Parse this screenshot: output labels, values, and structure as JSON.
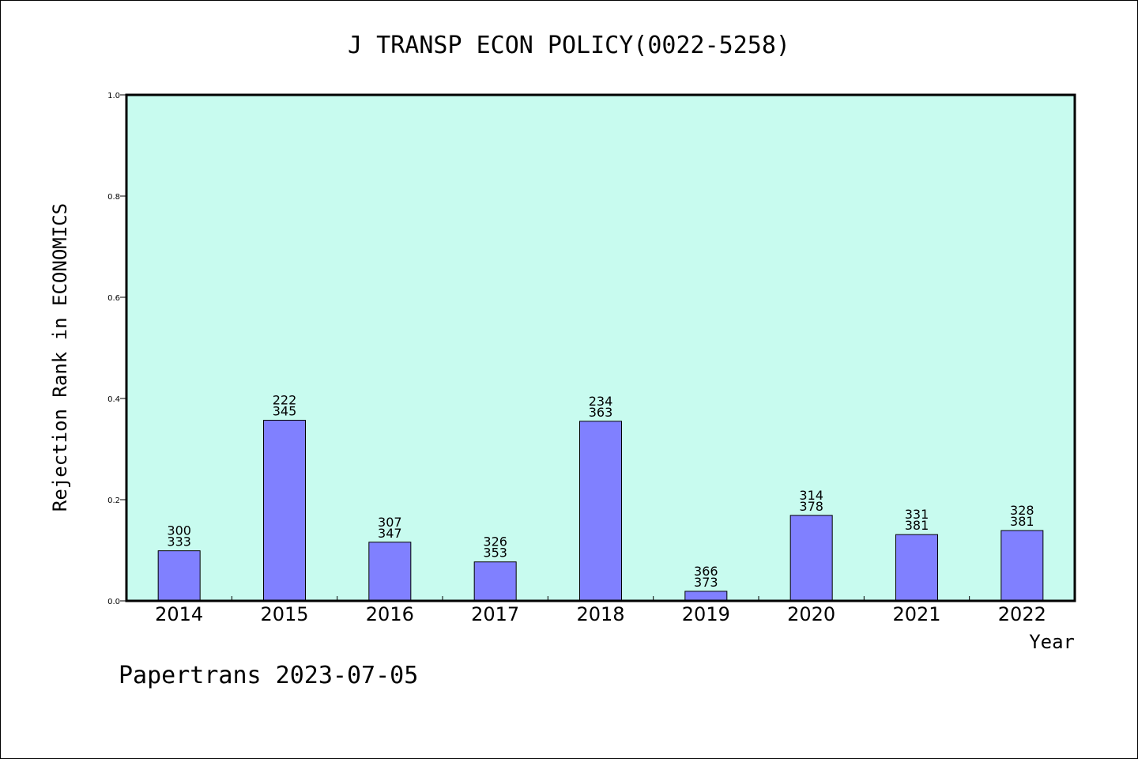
{
  "chart_data": {
    "type": "bar",
    "title": "J TRANSP ECON POLICY(0022-5258)",
    "xlabel": "Year",
    "ylabel": "Rejection Rank in ECONOMICS",
    "ylim": [
      0,
      1.0
    ],
    "yticks": [
      "0.0",
      "0.2",
      "0.4",
      "0.6",
      "0.8",
      "1.0"
    ],
    "categories": [
      "2014",
      "2015",
      "2016",
      "2017",
      "2018",
      "2019",
      "2020",
      "2021",
      "2022"
    ],
    "values": [
      0.099,
      0.357,
      0.116,
      0.077,
      0.355,
      0.019,
      0.169,
      0.131,
      0.139
    ],
    "labels_top": [
      "300",
      "222",
      "307",
      "326",
      "234",
      "366",
      "314",
      "331",
      "328"
    ],
    "labels_bottom": [
      "333",
      "345",
      "347",
      "353",
      "363",
      "373",
      "378",
      "381",
      "381"
    ],
    "colors": {
      "plot_bg": "#c8fbef",
      "bar_fill": "#8080ff",
      "bar_stroke": "#000000"
    },
    "grid": false
  },
  "footer": "Papertrans 2023-07-05"
}
